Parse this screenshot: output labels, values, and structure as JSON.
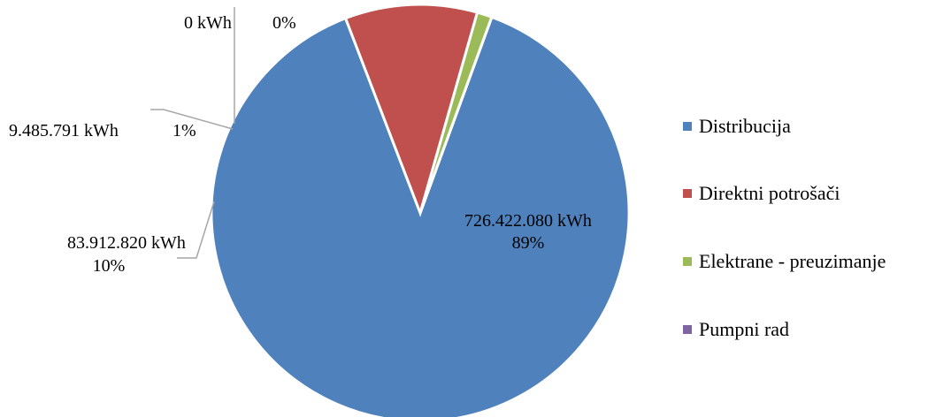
{
  "chart_data": {
    "type": "pie",
    "title": "",
    "unit": "kWh",
    "legend_position": "right",
    "series": [
      {
        "name": "Distribucija",
        "value": 726422080,
        "value_label": "726.422.080  kWh",
        "percent_label": "89%",
        "color": "#4F81BD"
      },
      {
        "name": "Direktni potrošači",
        "value": 83912820,
        "value_label": "83.912.820 kWh",
        "percent_label": "10%",
        "color": "#C0504D"
      },
      {
        "name": "Elektrane - preuzimanje",
        "value": 9485791,
        "value_label": "9.485.791  kWh",
        "percent_label": "1%",
        "color": "#9BBB59"
      },
      {
        "name": "Pumpni rad",
        "value": 0,
        "value_label": "0  kWh",
        "percent_label": "0%",
        "color": "#8064A2"
      }
    ]
  }
}
